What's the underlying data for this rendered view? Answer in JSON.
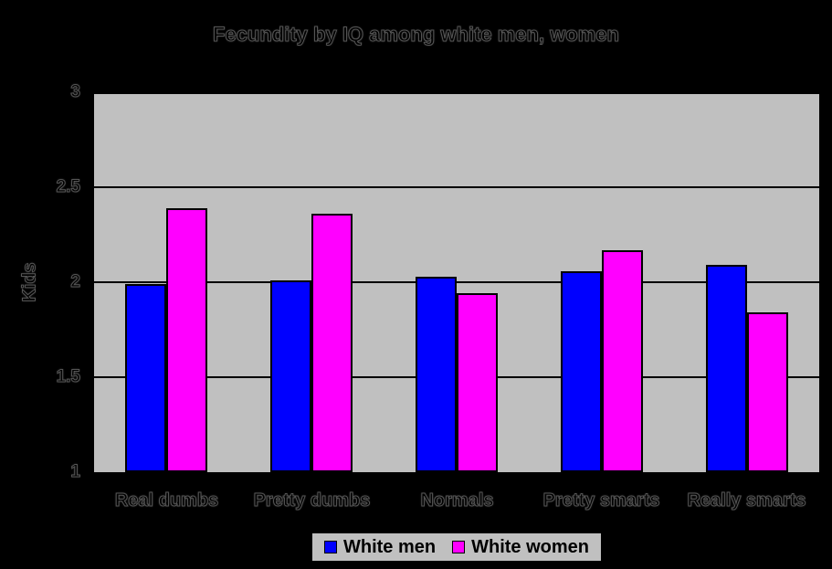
{
  "chart_data": {
    "type": "bar",
    "title": "Fecundity by IQ among white men, women",
    "ylabel": "Kids",
    "xlabel": "",
    "categories": [
      "Real dumbs",
      "Pretty dumbs",
      "Normals",
      "Pretty smarts",
      "Really smarts"
    ],
    "series": [
      {
        "name": "White men",
        "color": "#0000ff",
        "values": [
          1.99,
          2.01,
          2.03,
          2.06,
          2.09
        ]
      },
      {
        "name": "White women",
        "color": "#ff00ff",
        "values": [
          2.39,
          2.36,
          1.94,
          2.17,
          1.84
        ]
      }
    ],
    "ylim": [
      1,
      3
    ],
    "yticks": [
      3,
      2.5,
      2,
      1.5,
      1
    ],
    "grid": true,
    "legend_position": "bottom",
    "colors": {
      "plot_background": "#c0c0c0",
      "canvas_background": "#000000",
      "gridline": "#000000",
      "text": "#000000"
    }
  }
}
